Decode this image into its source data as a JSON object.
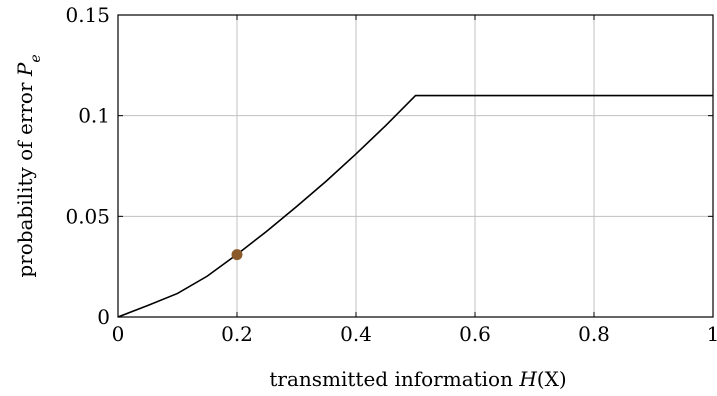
{
  "chart_data": {
    "type": "line",
    "xlabel": {
      "prefix": "transmitted information ",
      "math": "H",
      "suffix": "(X)"
    },
    "ylabel": {
      "prefix": "probability of error ",
      "math": "P",
      "subscript": "e"
    },
    "xlim": [
      0,
      1
    ],
    "ylim": [
      0,
      0.15
    ],
    "xticks": [
      0,
      0.2,
      0.4,
      0.6,
      0.8,
      1
    ],
    "xtick_labels": [
      "0",
      "0.2",
      "0.4",
      "0.6",
      "0.8",
      "1"
    ],
    "yticks": [
      0,
      0.05,
      0.1,
      0.15
    ],
    "ytick_labels": [
      "0",
      "0.05",
      "0.1",
      "0.15"
    ],
    "grid": true,
    "series": [
      {
        "color": "#000000",
        "x": [
          0,
          0.05,
          0.1,
          0.15,
          0.2,
          0.25,
          0.3,
          0.35,
          0.4,
          0.45,
          0.5,
          0.6,
          0.7,
          0.8,
          0.9,
          1.0
        ],
        "y": [
          0,
          0.0057,
          0.0117,
          0.0203,
          0.0311,
          0.0426,
          0.0548,
          0.0675,
          0.081,
          0.0951,
          0.11,
          0.11,
          0.11,
          0.11,
          0.11,
          0.11
        ]
      }
    ],
    "markers": [
      {
        "x": 0.2,
        "y": 0.031,
        "color": "#8b5a2b"
      }
    ]
  }
}
